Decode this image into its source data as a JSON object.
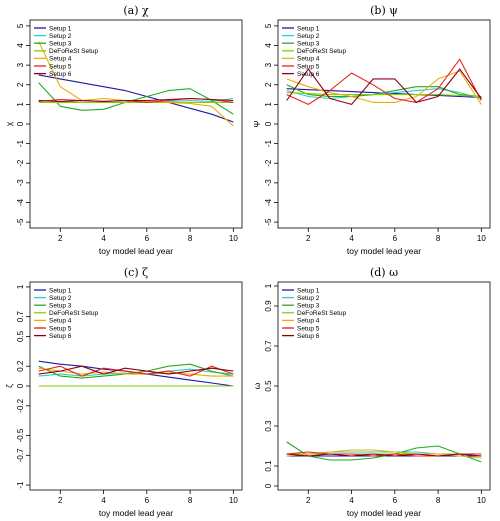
{
  "chart_data": [
    {
      "type": "line",
      "title": "(a) χ",
      "xlabel": "toy model lead year",
      "ylabel": "χ",
      "x": [
        1,
        2,
        3,
        4,
        5,
        6,
        7,
        8,
        9,
        10
      ],
      "xticks": [
        2,
        4,
        6,
        8,
        10
      ],
      "xlim": [
        0.6,
        10.4
      ],
      "ylim": [
        -5.3,
        5.3
      ],
      "yticks": [
        "-5",
        "-4",
        "-3",
        "-2",
        "-1",
        "0",
        "1",
        "2",
        "3",
        "4",
        "5"
      ],
      "legend_position": "top-left",
      "series": [
        {
          "name": "Setup 1",
          "color": "#1a1aa6",
          "values": [
            2.5,
            2.3,
            2.1,
            1.9,
            1.7,
            1.4,
            1.1,
            0.8,
            0.5,
            0.1
          ]
        },
        {
          "name": "Setup 2",
          "color": "#33cccc",
          "values": [
            1.2,
            1.15,
            1.1,
            1.1,
            1.1,
            1.1,
            1.15,
            1.2,
            1.15,
            1.3
          ]
        },
        {
          "name": "Setup 3",
          "color": "#22aa22",
          "values": [
            2.1,
            0.9,
            0.7,
            0.75,
            1.1,
            1.4,
            1.7,
            1.8,
            1.2,
            0.5
          ]
        },
        {
          "name": "DeFoReSt Setup",
          "color": "#88cc00",
          "values": [
            1.1,
            1.1,
            1.1,
            1.1,
            1.1,
            1.1,
            1.1,
            1.1,
            1.1,
            1.1
          ]
        },
        {
          "name": "Setup 4",
          "color": "#e8b000",
          "values": [
            4.2,
            1.9,
            1.2,
            1.3,
            1.2,
            1.15,
            1.1,
            1.05,
            0.9,
            -0.1
          ]
        },
        {
          "name": "Setup 5",
          "color": "#ee2020",
          "values": [
            1.15,
            1.25,
            1.2,
            1.15,
            1.2,
            1.1,
            1.2,
            1.3,
            1.25,
            1.1
          ]
        },
        {
          "name": "Setup 6",
          "color": "#8b0018",
          "values": [
            1.2,
            1.15,
            1.2,
            1.15,
            1.2,
            1.2,
            1.25,
            1.3,
            1.25,
            1.2
          ]
        }
      ]
    },
    {
      "type": "line",
      "title": "(b) ψ",
      "xlabel": "toy model lead year",
      "ylabel": "Ψ",
      "x": [
        1,
        2,
        3,
        4,
        5,
        6,
        7,
        8,
        9,
        10
      ],
      "xticks": [
        2,
        4,
        6,
        8,
        10
      ],
      "xlim": [
        0.6,
        10.4
      ],
      "ylim": [
        -5.3,
        5.3
      ],
      "yticks": [
        "-5",
        "-4",
        "-3",
        "-2",
        "-1",
        "0",
        "1",
        "2",
        "3",
        "4",
        "5"
      ],
      "legend_position": "top-left",
      "series": [
        {
          "name": "Setup 1",
          "color": "#1a1aa6",
          "values": [
            1.8,
            1.75,
            1.7,
            1.65,
            1.6,
            1.55,
            1.5,
            1.45,
            1.4,
            1.35
          ]
        },
        {
          "name": "Setup 2",
          "color": "#33cccc",
          "values": [
            1.7,
            1.4,
            1.3,
            1.4,
            1.5,
            1.6,
            1.7,
            1.8,
            1.6,
            1.3
          ]
        },
        {
          "name": "Setup 3",
          "color": "#22aa22",
          "values": [
            2.0,
            1.5,
            1.4,
            1.4,
            1.5,
            1.7,
            1.9,
            1.9,
            1.5,
            1.4
          ]
        },
        {
          "name": "DeFoReSt Setup",
          "color": "#88cc00",
          "values": [
            1.6,
            1.55,
            1.5,
            1.5,
            1.5,
            1.5,
            1.5,
            1.5,
            1.45,
            1.4
          ]
        },
        {
          "name": "Setup 4",
          "color": "#e8b000",
          "values": [
            2.3,
            1.9,
            1.6,
            1.4,
            1.1,
            1.1,
            1.4,
            2.3,
            2.7,
            1.0
          ]
        },
        {
          "name": "Setup 5",
          "color": "#ee2020",
          "values": [
            1.5,
            1.0,
            1.7,
            2.6,
            2.0,
            1.3,
            1.1,
            1.8,
            3.3,
            1.2
          ]
        },
        {
          "name": "Setup 6",
          "color": "#8b0018",
          "values": [
            1.2,
            2.8,
            1.3,
            1.0,
            2.3,
            2.3,
            1.1,
            1.4,
            2.8,
            1.3
          ]
        }
      ]
    },
    {
      "type": "line",
      "title": "(c) ζ",
      "xlabel": "toy model lead year",
      "ylabel": "ζ",
      "x": [
        1,
        2,
        3,
        4,
        5,
        6,
        7,
        8,
        9,
        10
      ],
      "xticks": [
        2,
        4,
        6,
        8,
        10
      ],
      "xlim": [
        0.6,
        10.4
      ],
      "ylim": [
        -1.05,
        1.05
      ],
      "yticks": [
        "-1",
        "-0.7",
        "-0.5",
        "-0.2",
        "0",
        "0.2",
        "0.5",
        "0.7",
        "1"
      ],
      "legend_position": "top-left",
      "series": [
        {
          "name": "Setup 1",
          "color": "#1a1aa6",
          "values": [
            0.25,
            0.22,
            0.2,
            0.17,
            0.15,
            0.12,
            0.09,
            0.06,
            0.03,
            0.0
          ]
        },
        {
          "name": "Setup 2",
          "color": "#33cccc",
          "values": [
            0.1,
            0.12,
            0.1,
            0.12,
            0.13,
            0.12,
            0.15,
            0.17,
            0.14,
            0.12
          ]
        },
        {
          "name": "Setup 3",
          "color": "#22aa22",
          "values": [
            0.2,
            0.1,
            0.08,
            0.1,
            0.12,
            0.15,
            0.2,
            0.22,
            0.15,
            0.1
          ]
        },
        {
          "name": "DeFoReSt Setup",
          "color": "#88cc00",
          "values": [
            0.0,
            0.0,
            0.0,
            0.0,
            0.0,
            0.0,
            0.0,
            0.0,
            0.0,
            0.0
          ]
        },
        {
          "name": "Setup 4",
          "color": "#e8b000",
          "values": [
            0.18,
            0.15,
            0.12,
            0.14,
            0.12,
            0.12,
            0.13,
            0.12,
            0.1,
            0.1
          ]
        },
        {
          "name": "Setup 5",
          "color": "#ee2020",
          "values": [
            0.15,
            0.2,
            0.1,
            0.18,
            0.15,
            0.12,
            0.15,
            0.1,
            0.2,
            0.12
          ]
        },
        {
          "name": "Setup 6",
          "color": "#8b0018",
          "values": [
            0.12,
            0.15,
            0.2,
            0.12,
            0.18,
            0.15,
            0.12,
            0.15,
            0.18,
            0.15
          ]
        }
      ]
    },
    {
      "type": "line",
      "title": "(d) ω",
      "xlabel": "toy model lead year",
      "ylabel": "ω",
      "x": [
        1,
        2,
        3,
        4,
        5,
        6,
        7,
        8,
        9,
        10
      ],
      "xticks": [
        2,
        4,
        6,
        8,
        10
      ],
      "xlim": [
        0.6,
        10.4
      ],
      "ylim": [
        -0.02,
        1.02
      ],
      "yticks": [
        "0",
        "0.1",
        "0.3",
        "0.5",
        "0.7",
        "0.9",
        "1"
      ],
      "legend_position": "top-left",
      "series": [
        {
          "name": "Setup 1",
          "color": "#1a1aa6",
          "values": [
            0.15,
            0.15,
            0.15,
            0.15,
            0.15,
            0.15,
            0.15,
            0.15,
            0.15,
            0.15
          ]
        },
        {
          "name": "Setup 2",
          "color": "#33cccc",
          "values": [
            0.16,
            0.16,
            0.17,
            0.17,
            0.17,
            0.17,
            0.17,
            0.16,
            0.16,
            0.15
          ]
        },
        {
          "name": "Setup 3",
          "color": "#22aa22",
          "values": [
            0.22,
            0.15,
            0.13,
            0.13,
            0.14,
            0.16,
            0.19,
            0.2,
            0.16,
            0.12
          ]
        },
        {
          "name": "DeFoReSt Setup",
          "color": "#88cc00",
          "values": [
            0.16,
            0.16,
            0.16,
            0.16,
            0.16,
            0.16,
            0.16,
            0.16,
            0.16,
            0.16
          ]
        },
        {
          "name": "Setup 4",
          "color": "#e8b000",
          "values": [
            0.15,
            0.16,
            0.17,
            0.18,
            0.18,
            0.17,
            0.16,
            0.16,
            0.15,
            0.14
          ]
        },
        {
          "name": "Setup 5",
          "color": "#ee2020",
          "values": [
            0.16,
            0.17,
            0.16,
            0.16,
            0.15,
            0.16,
            0.15,
            0.15,
            0.16,
            0.16
          ]
        },
        {
          "name": "Setup 6",
          "color": "#8b0018",
          "values": [
            0.16,
            0.15,
            0.16,
            0.15,
            0.16,
            0.15,
            0.16,
            0.15,
            0.16,
            0.15
          ]
        }
      ]
    }
  ]
}
